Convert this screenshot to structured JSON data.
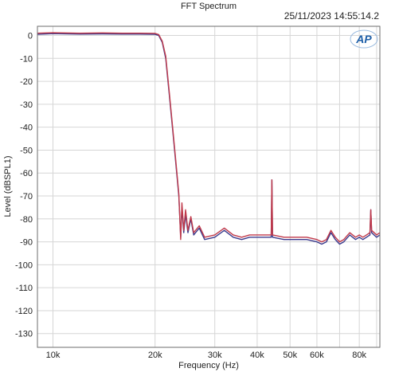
{
  "window": {
    "title": "FFT Spectrum",
    "timestamp": "25/11/2023 14:55:14.2",
    "logo_text": "AP"
  },
  "colors": {
    "background": "#ffffff",
    "plot_border": "#6e6e6e",
    "grid": "#d6d6d6",
    "series_blue": "#3a3a8c",
    "series_red": "#c0394a",
    "logo": "#1e5fa8"
  },
  "chart_data": {
    "type": "line",
    "title": "FFT Spectrum",
    "xlabel": "Frequency (Hz)",
    "ylabel": "Level (dBSPL1)",
    "x_scale": "log",
    "xlim": [
      9000,
      92000
    ],
    "ylim": [
      -136,
      4
    ],
    "grid": true,
    "x_ticks": [
      10000,
      20000,
      30000,
      40000,
      50000,
      60000,
      80000
    ],
    "x_tick_labels": [
      "10k",
      "20k",
      "30k",
      "40k",
      "50k",
      "60k",
      "80k"
    ],
    "y_ticks": [
      0,
      -10,
      -20,
      -30,
      -40,
      -50,
      -60,
      -70,
      -80,
      -90,
      -100,
      -110,
      -120,
      -130
    ],
    "y_tick_labels": [
      "0",
      "-10",
      "-20",
      "-30",
      "-40",
      "-50",
      "-60",
      "-70",
      "-80",
      "-90",
      "-100",
      "-110",
      "-120",
      "-130"
    ],
    "series": [
      {
        "color": "#3a3a8c",
        "points": [
          [
            9000,
            0.5
          ],
          [
            10000,
            0.8
          ],
          [
            12000,
            0.6
          ],
          [
            14000,
            0.7
          ],
          [
            16000,
            0.6
          ],
          [
            18000,
            0.6
          ],
          [
            20000,
            0.5
          ],
          [
            20500,
            0.0
          ],
          [
            21000,
            -3
          ],
          [
            21500,
            -10
          ],
          [
            22000,
            -25
          ],
          [
            22500,
            -40
          ],
          [
            23000,
            -55
          ],
          [
            23500,
            -70
          ],
          [
            23800,
            -88
          ],
          [
            24000,
            -75
          ],
          [
            24300,
            -86
          ],
          [
            24600,
            -78
          ],
          [
            25000,
            -86
          ],
          [
            25500,
            -80
          ],
          [
            26000,
            -87
          ],
          [
            27000,
            -84
          ],
          [
            28000,
            -89
          ],
          [
            30000,
            -88
          ],
          [
            32000,
            -85
          ],
          [
            34000,
            -88
          ],
          [
            36000,
            -89
          ],
          [
            38000,
            -88
          ],
          [
            42000,
            -88
          ],
          [
            44000,
            -88
          ],
          [
            44200,
            -63
          ],
          [
            44400,
            -88
          ],
          [
            48000,
            -89
          ],
          [
            52000,
            -89
          ],
          [
            56000,
            -89
          ],
          [
            60000,
            -90
          ],
          [
            62000,
            -91
          ],
          [
            64000,
            -90
          ],
          [
            66000,
            -86
          ],
          [
            68000,
            -89
          ],
          [
            70000,
            -91
          ],
          [
            72000,
            -90
          ],
          [
            75000,
            -87
          ],
          [
            78000,
            -89
          ],
          [
            80000,
            -88
          ],
          [
            82000,
            -89
          ],
          [
            84000,
            -88
          ],
          [
            86000,
            -87
          ],
          [
            86500,
            -76
          ],
          [
            87000,
            -86
          ],
          [
            90000,
            -88
          ],
          [
            92000,
            -87
          ]
        ]
      },
      {
        "color": "#c0394a",
        "points": [
          [
            9000,
            1.0
          ],
          [
            10000,
            1.2
          ],
          [
            12000,
            1.0
          ],
          [
            14000,
            1.1
          ],
          [
            16000,
            1.0
          ],
          [
            18000,
            1.0
          ],
          [
            20000,
            0.9
          ],
          [
            20500,
            0.4
          ],
          [
            21000,
            -2.5
          ],
          [
            21500,
            -9
          ],
          [
            22000,
            -24
          ],
          [
            22500,
            -39
          ],
          [
            23000,
            -54
          ],
          [
            23500,
            -69
          ],
          [
            23800,
            -89
          ],
          [
            24000,
            -73
          ],
          [
            24300,
            -85
          ],
          [
            24600,
            -76
          ],
          [
            25000,
            -85
          ],
          [
            25500,
            -79
          ],
          [
            26000,
            -86
          ],
          [
            27000,
            -83
          ],
          [
            28000,
            -88
          ],
          [
            30000,
            -87
          ],
          [
            32000,
            -84
          ],
          [
            34000,
            -87
          ],
          [
            36000,
            -88
          ],
          [
            38000,
            -87
          ],
          [
            42000,
            -87
          ],
          [
            44000,
            -87
          ],
          [
            44200,
            -63
          ],
          [
            44400,
            -87
          ],
          [
            48000,
            -88
          ],
          [
            52000,
            -88
          ],
          [
            56000,
            -88
          ],
          [
            60000,
            -89
          ],
          [
            62000,
            -90
          ],
          [
            64000,
            -89
          ],
          [
            66000,
            -85
          ],
          [
            68000,
            -88
          ],
          [
            70000,
            -90
          ],
          [
            72000,
            -89
          ],
          [
            75000,
            -86
          ],
          [
            78000,
            -88
          ],
          [
            80000,
            -87
          ],
          [
            82000,
            -88
          ],
          [
            84000,
            -87
          ],
          [
            86000,
            -86
          ],
          [
            86500,
            -76
          ],
          [
            87000,
            -85
          ],
          [
            90000,
            -87
          ],
          [
            92000,
            -86
          ]
        ]
      }
    ]
  }
}
